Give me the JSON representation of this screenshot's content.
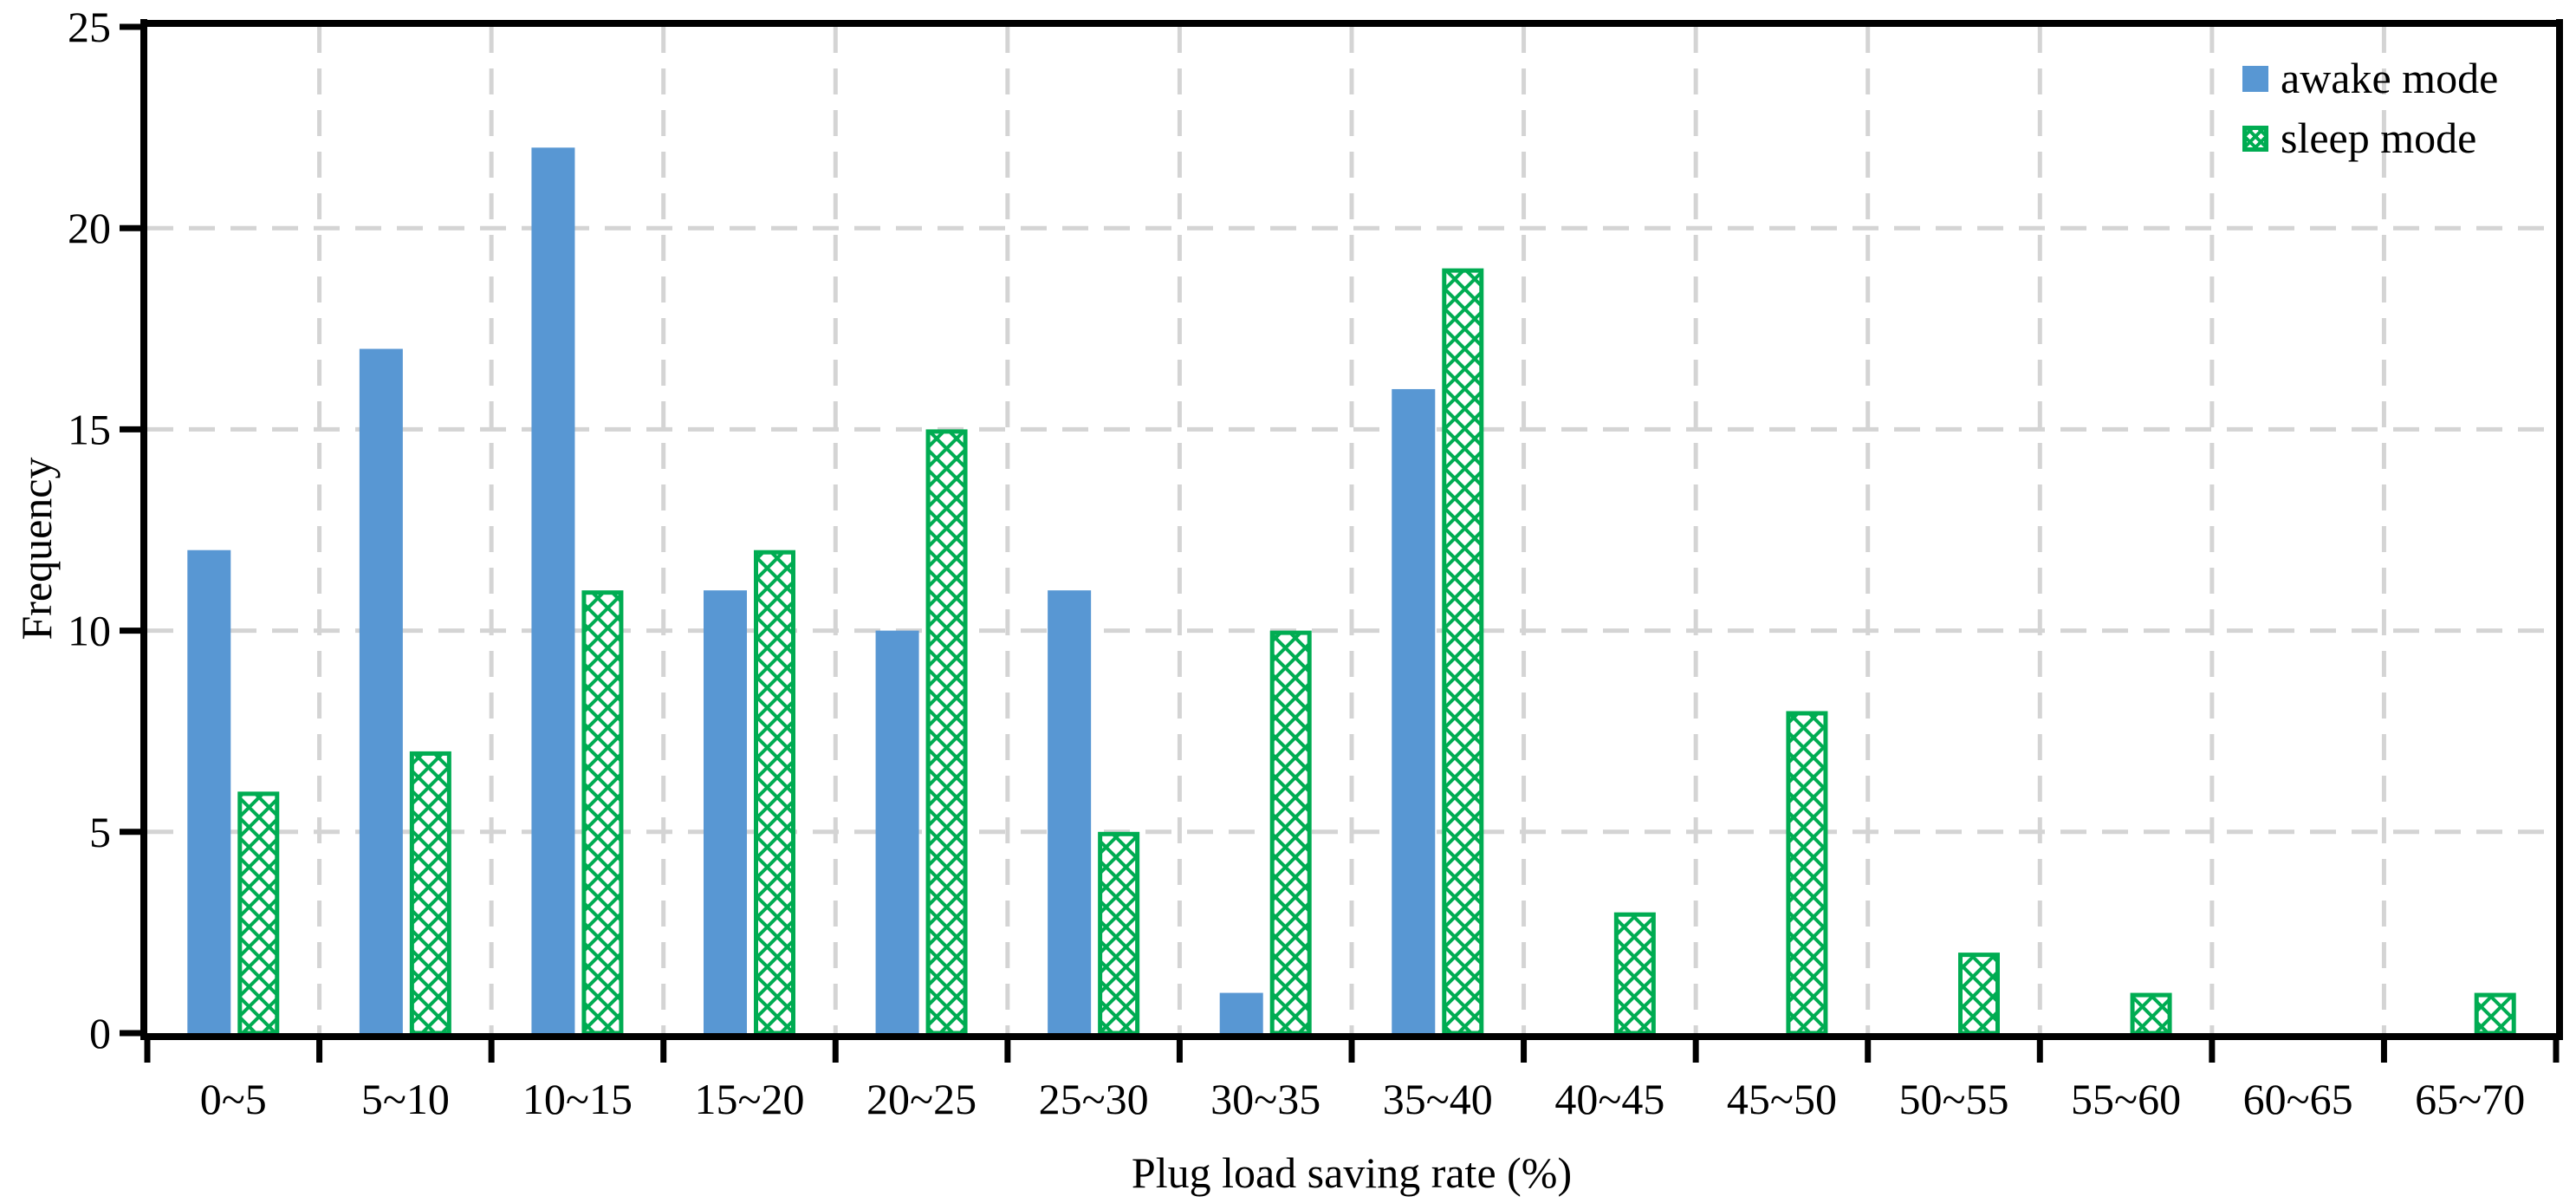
{
  "chart_data": {
    "type": "bar",
    "title": "",
    "xlabel": "Plug load saving rate (%)",
    "ylabel": "Frequency",
    "categories": [
      "0~5",
      "5~10",
      "10~15",
      "15~20",
      "20~25",
      "25~30",
      "30~35",
      "35~40",
      "40~45",
      "45~50",
      "50~55",
      "55~60",
      "60~65",
      "65~70"
    ],
    "series": [
      {
        "name": "awake mode",
        "color": "#5897D3",
        "pattern": "solid",
        "values": [
          12,
          17,
          22,
          11,
          10,
          11,
          1,
          16,
          0,
          0,
          0,
          0,
          0,
          0
        ]
      },
      {
        "name": "sleep mode",
        "color": "#00AC52",
        "pattern": "crosshatch",
        "values": [
          6,
          7,
          11,
          12,
          15,
          5,
          10,
          19,
          3,
          8,
          2,
          1,
          0,
          1
        ]
      }
    ],
    "ylim": [
      0,
      25
    ],
    "yticks": [
      0,
      5,
      10,
      15,
      20,
      25
    ],
    "grid": {
      "show": true,
      "color": "#D4D4D4",
      "style": "dashed"
    },
    "legend": {
      "position": "top-right"
    },
    "axis_color": "#000000",
    "plot_background": "#ffffff"
  }
}
